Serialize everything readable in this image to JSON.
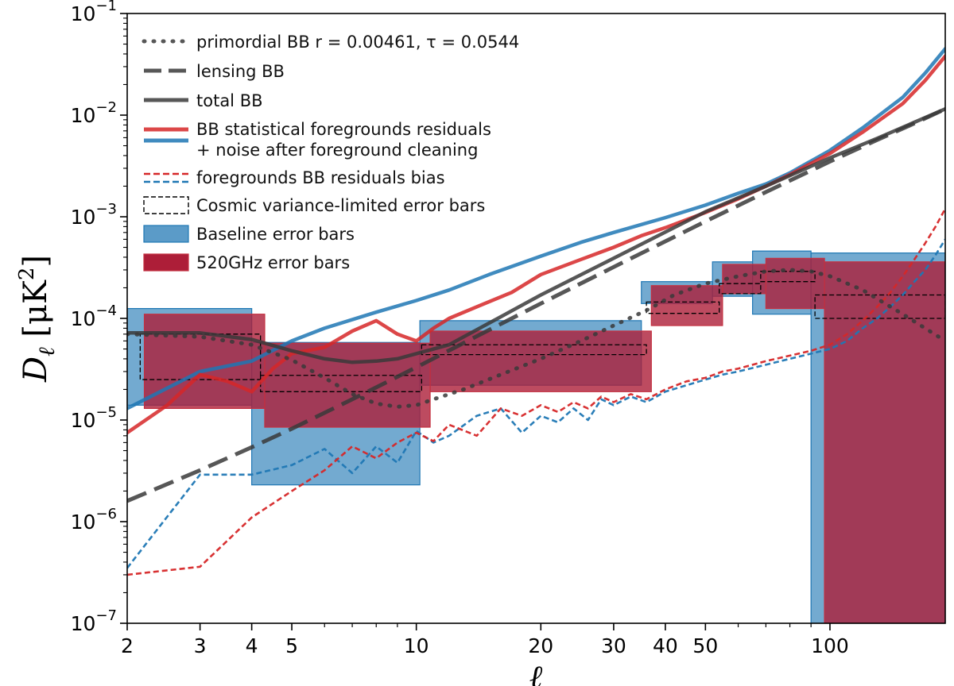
{
  "chart_data": {
    "type": "line",
    "title": "",
    "xlabel": "ℓ",
    "ylabel": "D_ℓ [μK²]",
    "xscale": "log",
    "yscale": "log",
    "xlim": [
      2,
      190
    ],
    "ylim": [
      1e-07,
      0.1
    ],
    "grid": false,
    "legend_position": "top-left",
    "xticks": [
      {
        "value": 2,
        "label": "2"
      },
      {
        "value": 3,
        "label": "3"
      },
      {
        "value": 4,
        "label": "4"
      },
      {
        "value": 5,
        "label": "5"
      },
      {
        "value": 10,
        "label": "10"
      },
      {
        "value": 20,
        "label": "20"
      },
      {
        "value": 30,
        "label": "30"
      },
      {
        "value": 40,
        "label": "40"
      },
      {
        "value": 50,
        "label": "50"
      },
      {
        "value": 100,
        "label": "100"
      }
    ],
    "yticks": [
      {
        "exp": -7,
        "base": "10",
        "sup": "−7"
      },
      {
        "exp": -6,
        "base": "10",
        "sup": "−6"
      },
      {
        "exp": -5,
        "base": "10",
        "sup": "−5"
      },
      {
        "exp": -4,
        "base": "10",
        "sup": "−4"
      },
      {
        "exp": -3,
        "base": "10",
        "sup": "−3"
      },
      {
        "exp": -2,
        "base": "10",
        "sup": "−2"
      },
      {
        "exp": -1,
        "base": "10",
        "sup": "−1"
      }
    ],
    "colors": {
      "black": "#3a3a3a",
      "red": "#d62728",
      "blue": "#1f77b4",
      "blue_fill": "#5b9bc8",
      "red_fill": "#ad1e38"
    },
    "legend": [
      {
        "label": "primordial BB r = 0.00461, τ = 0.0544",
        "style": "dotted"
      },
      {
        "label": "lensing BB",
        "style": "dashed"
      },
      {
        "label": "total BB",
        "style": "solid"
      },
      {
        "label": "BB statistical foregrounds residuals",
        "label2": " + noise after foreground cleaning",
        "style": "solid-pair"
      },
      {
        "label": "foregrounds BB residuals bias",
        "style": "dashed-pair"
      },
      {
        "label": "Cosmic variance-limited error bars",
        "style": "box-dashed"
      },
      {
        "label": "Baseline error bars",
        "style": "box-blue"
      },
      {
        "label": "520GHz error bars",
        "style": "box-red"
      }
    ],
    "series": [
      {
        "name": "primordial BB",
        "style": "dotted",
        "color": "black",
        "x": [
          2,
          3,
          4,
          5,
          6,
          7,
          8,
          9,
          10,
          11,
          13,
          16,
          20,
          25,
          30,
          36,
          42,
          50,
          60,
          70,
          80,
          90,
          100,
          120,
          150,
          190
        ],
        "y": [
          7e-05,
          6.6e-05,
          5.5e-05,
          3.9e-05,
          2.6e-05,
          1.8e-05,
          1.45e-05,
          1.35e-05,
          1.4e-05,
          1.6e-05,
          2e-05,
          2.8e-05,
          4e-05,
          6e-05,
          8.5e-05,
          0.00012,
          0.00017,
          0.00022,
          0.00026,
          0.00029,
          0.0003,
          0.00029,
          0.00026,
          0.00019,
          0.00011,
          6e-05
        ]
      },
      {
        "name": "lensing BB",
        "style": "dashed",
        "color": "black",
        "x": [
          2,
          3,
          4,
          5,
          7,
          10,
          15,
          20,
          30,
          50,
          70,
          100,
          130,
          160,
          190
        ],
        "y": [
          1.6e-06,
          3.2e-06,
          5.4e-06,
          8.2e-06,
          1.6e-05,
          3.3e-05,
          7.7e-05,
          0.00014,
          0.00032,
          0.0009,
          0.00175,
          0.0035,
          0.0057,
          0.0083,
          0.0115
        ]
      },
      {
        "name": "total BB",
        "style": "solid",
        "color": "black",
        "x": [
          2,
          3,
          4,
          5,
          6,
          7,
          8,
          9,
          10,
          12,
          15,
          20,
          30,
          50,
          70,
          100,
          130,
          160,
          190
        ],
        "y": [
          7.2e-05,
          7.2e-05,
          6.2e-05,
          4.8e-05,
          4e-05,
          3.7e-05,
          3.8e-05,
          4e-05,
          4.5e-05,
          5.5e-05,
          9e-05,
          0.00017,
          0.00039,
          0.00112,
          0.002,
          0.0038,
          0.0059,
          0.0085,
          0.0115
        ]
      },
      {
        "name": "BB statistical foregrounds residuals + noise (red)",
        "style": "solid",
        "color": "red",
        "x": [
          2,
          2.5,
          3,
          3.5,
          4,
          4.5,
          5,
          6,
          7,
          8,
          9,
          10,
          11,
          12,
          14,
          17,
          20,
          25,
          30,
          35,
          40,
          50,
          60,
          70,
          80,
          100,
          120,
          150,
          170,
          190
        ],
        "y": [
          7.5e-06,
          1.4e-05,
          2.8e-05,
          2.4e-05,
          1.9e-05,
          3.2e-05,
          4.5e-05,
          5.2e-05,
          7.5e-05,
          9.5e-05,
          7e-05,
          6e-05,
          8e-05,
          0.0001,
          0.00013,
          0.00018,
          0.00027,
          0.00038,
          0.0005,
          0.00065,
          0.00078,
          0.0011,
          0.0015,
          0.002,
          0.0026,
          0.0042,
          0.0068,
          0.013,
          0.022,
          0.038
        ]
      },
      {
        "name": "BB statistical foregrounds residuals + noise (blue)",
        "style": "solid",
        "color": "blue",
        "x": [
          2,
          3,
          4,
          5,
          6,
          8,
          10,
          12,
          15,
          20,
          25,
          30,
          40,
          50,
          60,
          70,
          80,
          100,
          120,
          150,
          170,
          190
        ],
        "y": [
          1.3e-05,
          3e-05,
          3.8e-05,
          6e-05,
          8e-05,
          0.000115,
          0.00015,
          0.00019,
          0.00027,
          0.00041,
          0.00056,
          0.0007,
          0.00098,
          0.0013,
          0.0017,
          0.0021,
          0.0027,
          0.0045,
          0.0075,
          0.015,
          0.026,
          0.045
        ]
      },
      {
        "name": "foregrounds BB residuals bias (red)",
        "style": "dashed",
        "color": "red",
        "x": [
          2,
          3,
          4,
          5,
          6,
          7,
          8,
          9,
          10,
          11,
          12,
          14,
          16,
          18,
          20,
          22,
          24,
          26,
          28,
          30,
          33,
          36,
          40,
          45,
          50,
          55,
          60,
          70,
          80,
          90,
          100,
          110,
          120,
          130,
          140,
          150,
          160,
          170,
          180,
          190
        ],
        "y": [
          3e-07,
          3.6e-07,
          1.1e-06,
          2e-06,
          3.2e-06,
          5.5e-06,
          4.2e-06,
          6e-06,
          7.5e-06,
          6.2e-06,
          9e-06,
          7e-06,
          1.3e-05,
          1.1e-05,
          1.4e-05,
          1.2e-05,
          1.5e-05,
          1.3e-05,
          1.7e-05,
          1.5e-05,
          1.8e-05,
          1.6e-05,
          2e-05,
          2.4e-05,
          2.6e-05,
          3e-05,
          3.2e-05,
          3.8e-05,
          4.3e-05,
          4.8e-05,
          5.5e-05,
          7e-05,
          9.5e-05,
          0.00013,
          0.00018,
          0.00026,
          0.00038,
          0.00055,
          0.0008,
          0.0012
        ]
      },
      {
        "name": "foregrounds BB residuals bias (blue)",
        "style": "dashed",
        "color": "blue",
        "x": [
          2,
          3,
          4,
          5,
          6,
          7,
          8,
          9,
          10,
          11,
          12,
          14,
          16,
          18,
          20,
          22,
          24,
          26,
          28,
          30,
          33,
          36,
          40,
          45,
          50,
          55,
          60,
          70,
          80,
          90,
          100,
          110,
          120,
          130,
          140,
          150,
          160,
          170,
          180,
          190
        ],
        "y": [
          3.5e-07,
          2.9e-06,
          2.9e-06,
          3.6e-06,
          5.2e-06,
          3e-06,
          5.5e-06,
          3.8e-06,
          7.8e-06,
          6e-06,
          7e-06,
          1.1e-05,
          1.3e-05,
          7.5e-06,
          1.1e-05,
          9.5e-06,
          1.3e-05,
          1e-05,
          1.6e-05,
          1.4e-05,
          1.7e-05,
          1.5e-05,
          1.9e-05,
          2.2e-05,
          2.5e-05,
          2.8e-05,
          3e-05,
          3.5e-05,
          4e-05,
          4.5e-05,
          5e-05,
          6e-05,
          8e-05,
          0.0001,
          0.00013,
          0.00017,
          0.00023,
          0.0003,
          0.00042,
          0.0006
        ]
      }
    ],
    "error_boxes_baseline": [
      {
        "x0": 2,
        "x1": 4,
        "y0": 1.4e-05,
        "y1": 0.000125
      },
      {
        "x0": 4,
        "x1": 10.2,
        "y0": 2.3e-06,
        "y1": 5.8e-05
      },
      {
        "x0": 10.2,
        "x1": 35,
        "y0": 2.2e-05,
        "y1": 9.5e-05
      },
      {
        "x0": 35,
        "x1": 52,
        "y0": 0.00014,
        "y1": 0.00023
      },
      {
        "x0": 52,
        "x1": 65,
        "y0": 0.000165,
        "y1": 0.00036
      },
      {
        "x0": 65,
        "x1": 90,
        "y0": 0.00011,
        "y1": 0.00046
      },
      {
        "x0": 90,
        "x1": 190,
        "y0": 1e-07,
        "y1": 0.00044
      }
    ],
    "error_boxes_520": [
      {
        "x0": 2.2,
        "x1": 4.3,
        "y0": 1.3e-05,
        "y1": 0.00011
      },
      {
        "x0": 4.3,
        "x1": 10.8,
        "y0": 8.5e-06,
        "y1": 5.7e-05
      },
      {
        "x0": 10.8,
        "x1": 37,
        "y0": 1.9e-05,
        "y1": 7.5e-05
      },
      {
        "x0": 37,
        "x1": 55,
        "y0": 8.5e-05,
        "y1": 0.00021
      },
      {
        "x0": 55,
        "x1": 70,
        "y0": 0.000175,
        "y1": 0.00034
      },
      {
        "x0": 70,
        "x1": 97,
        "y0": 0.000125,
        "y1": 0.00039
      },
      {
        "x0": 97,
        "x1": 190,
        "y0": 1e-07,
        "y1": 0.00036
      }
    ],
    "error_boxes_cv": [
      {
        "x0": 2.15,
        "x1": 4.2,
        "y0": 2.5e-05,
        "y1": 7e-05
      },
      {
        "x0": 4.2,
        "x1": 10.3,
        "y0": 1.9e-05,
        "y1": 2.75e-05
      },
      {
        "x0": 10.3,
        "x1": 36,
        "y0": 4.4e-05,
        "y1": 5.5e-05
      },
      {
        "x0": 36,
        "x1": 54,
        "y0": 0.000112,
        "y1": 0.000145
      },
      {
        "x0": 54,
        "x1": 68,
        "y0": 0.000175,
        "y1": 0.00022
      },
      {
        "x0": 68,
        "x1": 92,
        "y0": 0.00023,
        "y1": 0.00029
      },
      {
        "x0": 92,
        "x1": 190,
        "y0": 0.0001,
        "y1": 0.00017
      }
    ]
  }
}
